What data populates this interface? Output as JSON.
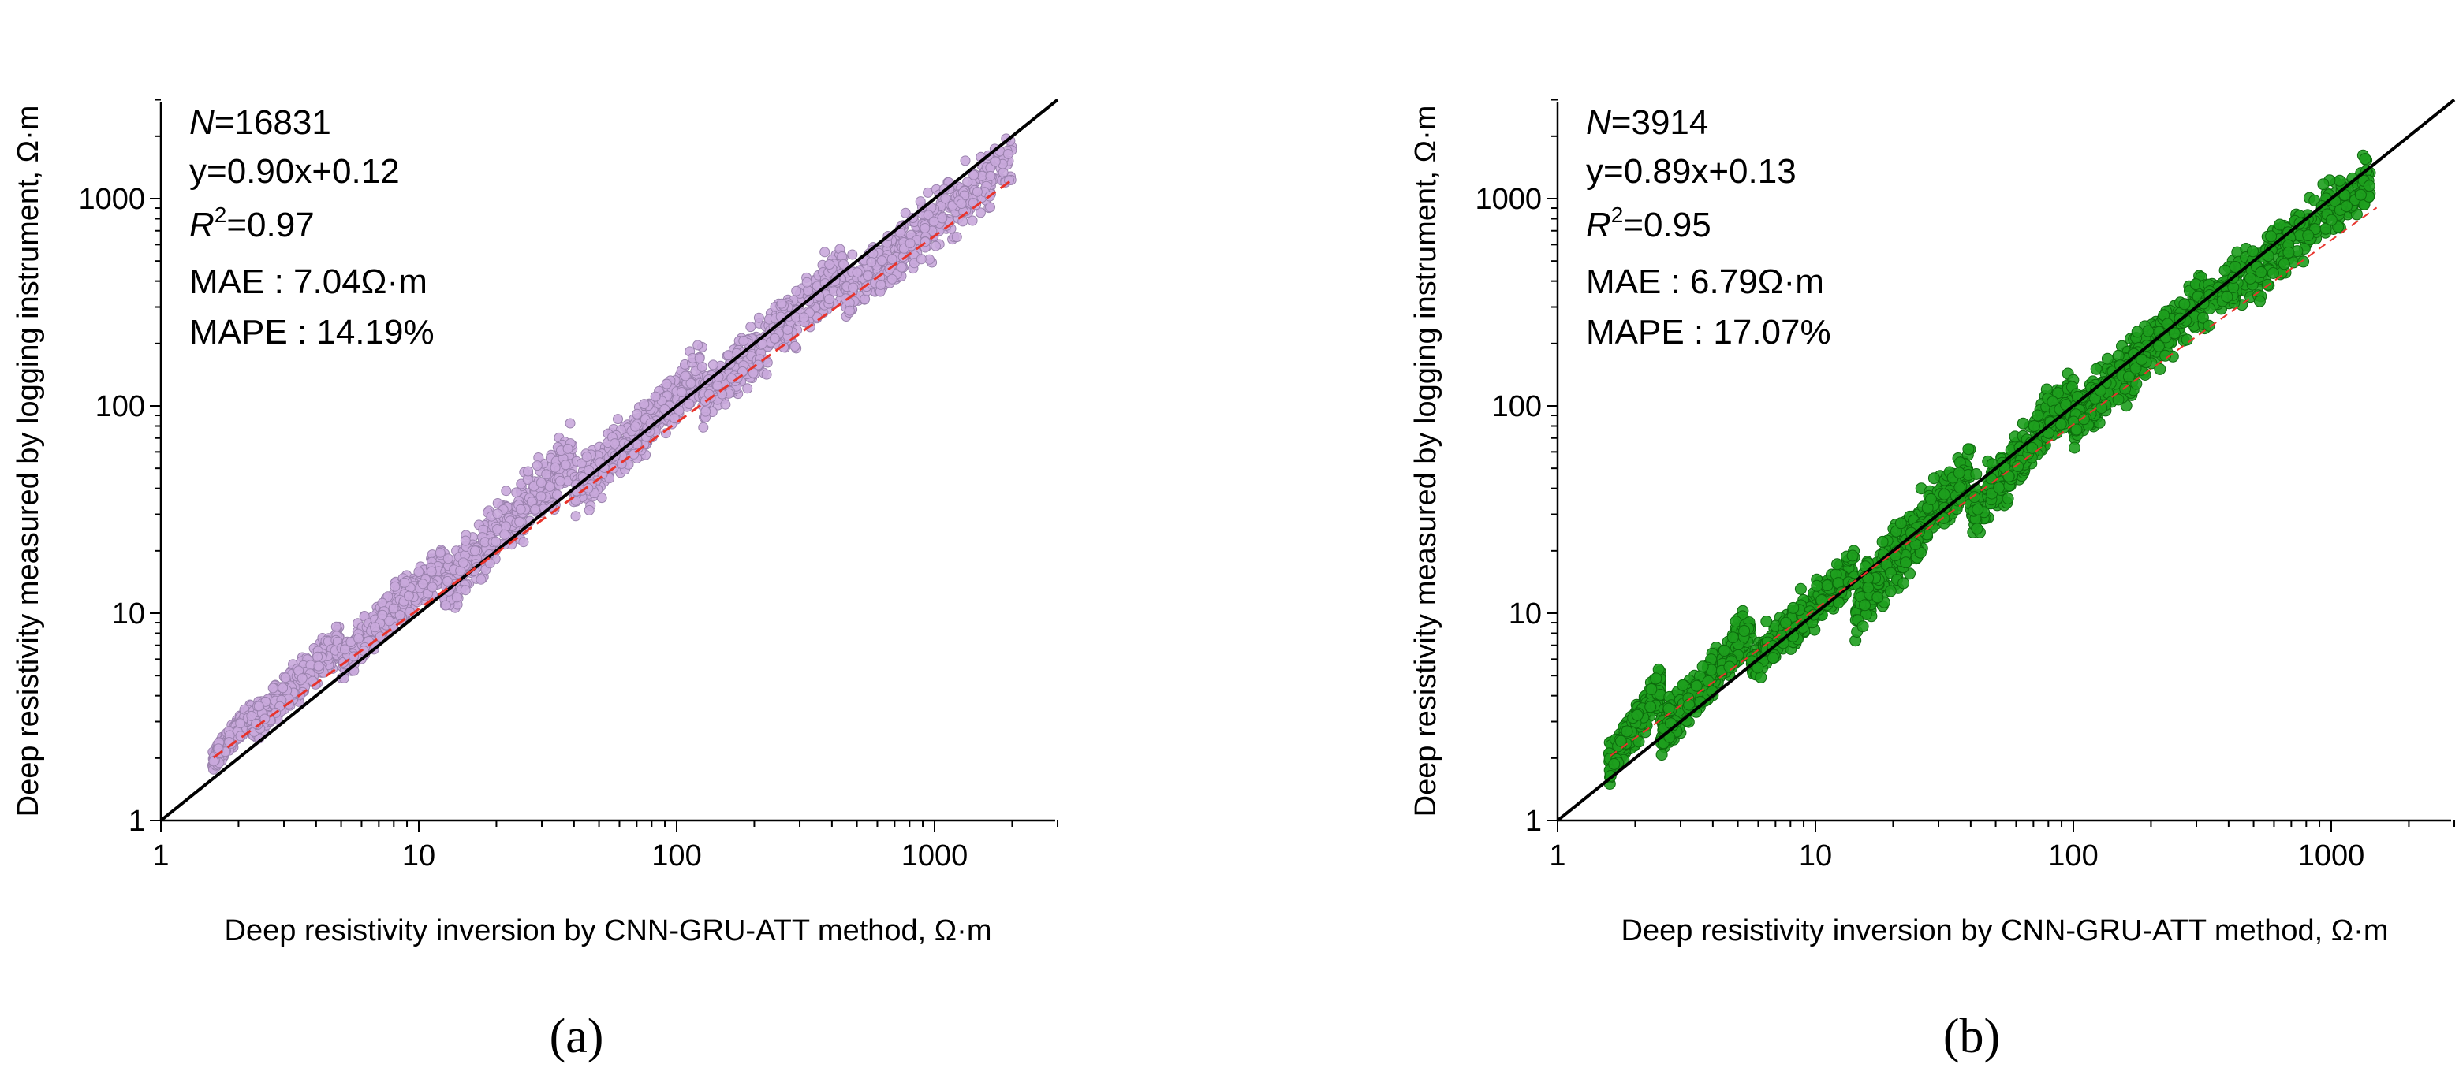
{
  "colors": {
    "panel_a_marker": "#c9a9dc",
    "panel_a_marker_edge": "#9a82ad",
    "panel_b_marker": "#1e9e1e",
    "panel_b_marker_edge": "#0d6b0d",
    "fit_line": "#e8332b",
    "identity_line": "#000000"
  },
  "chart_data": [
    {
      "type": "scatter",
      "panel_label": "(a)",
      "scale": "log-log",
      "xlabel": "Deep resistivity inversion by CNN-GRU-ATT method, Ω·m",
      "ylabel": "Deep resistivity measured by logging instrument, Ω·m",
      "xlim": [
        1,
        3000
      ],
      "ylim": [
        1,
        3000
      ],
      "x_ticks": [
        "1",
        "10",
        "100",
        "1000"
      ],
      "y_ticks": [
        "1",
        "10",
        "100",
        "1000"
      ],
      "stats": {
        "n_label": "N",
        "n_value": "=16831",
        "equation": "y=0.90x+0.12",
        "r2_label": "R",
        "r2_sup": "2",
        "r2_value": "=0.97",
        "mae": "MAE : 7.04Ω·m",
        "mape": "MAPE : 14.19%"
      },
      "n_points": 16831,
      "fit": {
        "slope_loglog": 0.9,
        "intercept_log": 0.12
      },
      "fit_range": [
        1.6,
        2000
      ],
      "identity_line": true,
      "scatter_bands": [
        {
          "log_x": [
            0.2,
            0.35
          ],
          "log_y": [
            0.32,
            0.55
          ]
        },
        {
          "log_x": [
            0.35,
            0.7
          ],
          "log_y": [
            0.47,
            0.9
          ]
        },
        {
          "log_x": [
            0.7,
            1.1
          ],
          "log_y": [
            0.8,
            1.28
          ]
        },
        {
          "log_x": [
            1.1,
            1.6
          ],
          "log_y": [
            1.15,
            1.8
          ]
        },
        {
          "log_x": [
            1.6,
            2.1
          ],
          "log_y": [
            1.6,
            2.2
          ]
        },
        {
          "log_x": [
            2.1,
            2.65
          ],
          "log_y": [
            2.05,
            2.7
          ]
        },
        {
          "log_x": [
            2.65,
            3.3
          ],
          "log_y": [
            2.55,
            3.22
          ]
        }
      ]
    },
    {
      "type": "scatter",
      "panel_label": "(b)",
      "scale": "log-log",
      "xlabel": "Deep resistivity inversion by CNN-GRU-ATT method, Ω·m",
      "ylabel": "Deep resistivity measured by logging instrument, Ω·m",
      "xlim": [
        1,
        3000
      ],
      "ylim": [
        1,
        3000
      ],
      "x_ticks": [
        "1",
        "10",
        "100",
        "1000"
      ],
      "y_ticks": [
        "1",
        "10",
        "100",
        "1000"
      ],
      "stats": {
        "n_label": "N",
        "n_value": "=3914",
        "equation": "y=0.89x+0.13",
        "r2_label": "R",
        "r2_sup": "2",
        "r2_value": "=0.95",
        "mae": "MAE : 6.79Ω·m",
        "mape": "MAPE : 17.07%"
      },
      "n_points": 3914,
      "fit": {
        "slope_loglog": 0.89,
        "intercept_log": 0.13
      },
      "fit_range": [
        1.6,
        1500
      ],
      "identity_line": true,
      "scatter_bands": [
        {
          "log_x": [
            0.2,
            0.4
          ],
          "log_y": [
            0.3,
            0.68
          ]
        },
        {
          "log_x": [
            0.4,
            0.75
          ],
          "log_y": [
            0.45,
            0.95
          ]
        },
        {
          "log_x": [
            0.75,
            1.15
          ],
          "log_y": [
            0.78,
            1.25
          ]
        },
        {
          "log_x": [
            1.15,
            1.6
          ],
          "log_y": [
            1.05,
            1.75
          ]
        },
        {
          "log_x": [
            1.6,
            2.0
          ],
          "log_y": [
            1.5,
            2.1
          ]
        },
        {
          "log_x": [
            2.0,
            2.5
          ],
          "log_y": [
            1.95,
            2.55
          ]
        },
        {
          "log_x": [
            2.5,
            3.15
          ],
          "log_y": [
            2.5,
            3.12
          ]
        }
      ]
    }
  ]
}
